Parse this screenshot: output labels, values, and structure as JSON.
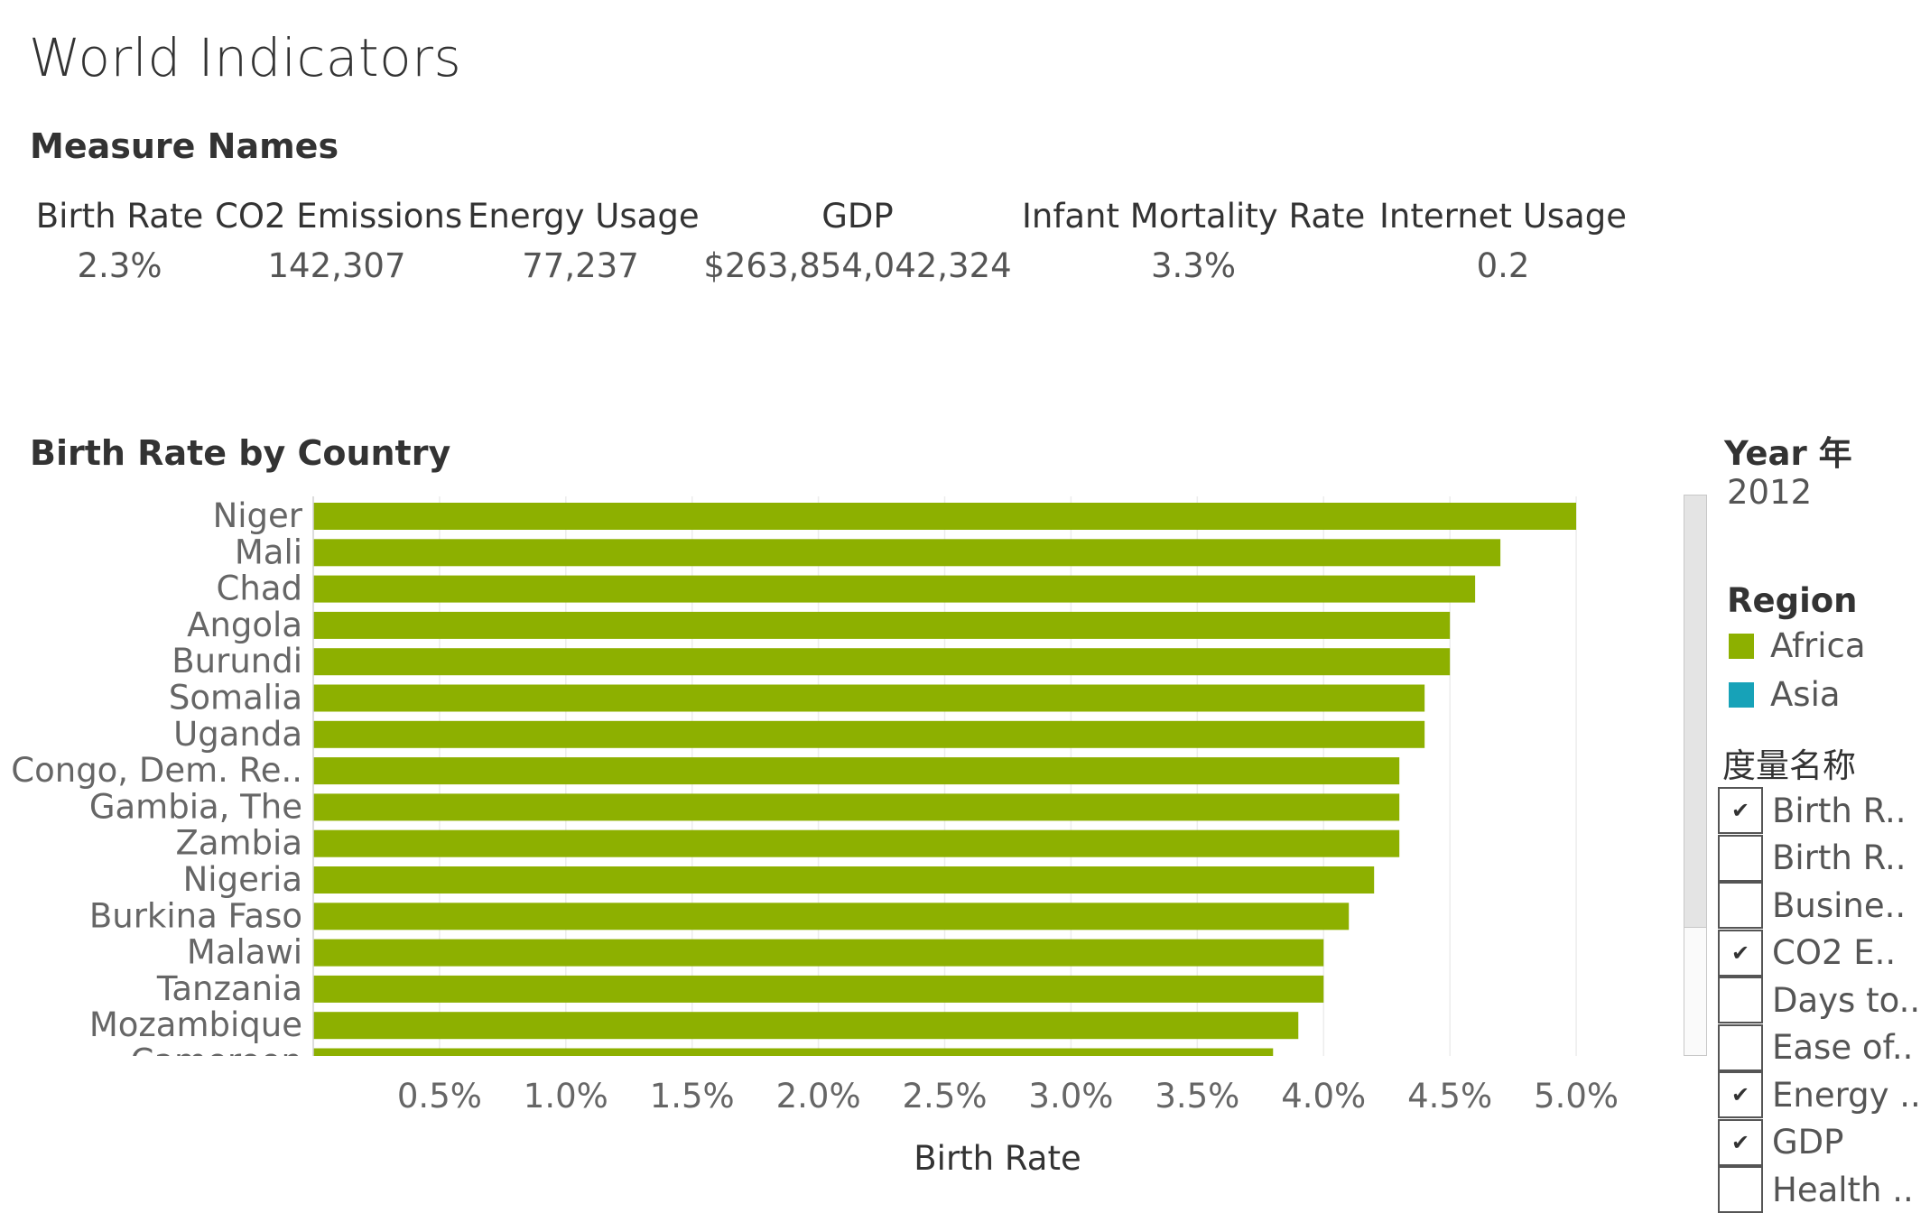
{
  "page": {
    "title": "World Indicators"
  },
  "measures": {
    "title": "Measure Names",
    "items": [
      {
        "name": "Birth Rate",
        "value": "2.3%"
      },
      {
        "name": "CO2 Emissions",
        "value": "142,307"
      },
      {
        "name": "Energy Usage",
        "value": "77,237"
      },
      {
        "name": "GDP",
        "value": "$263,854,042,324"
      },
      {
        "name": "Infant Mortality Rate",
        "value": "3.3%"
      },
      {
        "name": "Internet Usage",
        "value": "0.2"
      }
    ]
  },
  "chart_data": {
    "type": "bar",
    "orientation": "horizontal",
    "title": "Birth Rate by Country",
    "xlabel": "Birth Rate",
    "ylabel": "",
    "xlim": [
      0,
      0.052
    ],
    "x_ticks": [
      "0.5%",
      "1.0%",
      "1.5%",
      "2.0%",
      "2.5%",
      "3.0%",
      "3.5%",
      "4.0%",
      "4.5%",
      "5.0%"
    ],
    "x_tick_values": [
      0.005,
      0.01,
      0.015,
      0.02,
      0.025,
      0.03,
      0.035,
      0.04,
      0.045,
      0.05
    ],
    "grid": "vertical",
    "color": "#8db000",
    "categories": [
      "Niger",
      "Mali",
      "Chad",
      "Angola",
      "Burundi",
      "Somalia",
      "Uganda",
      "Congo, Dem. Re..",
      "Gambia, The",
      "Zambia",
      "Nigeria",
      "Burkina Faso",
      "Malawi",
      "Tanzania",
      "Mozambique",
      "Cameroon"
    ],
    "values": [
      0.05,
      0.047,
      0.046,
      0.045,
      0.045,
      0.044,
      0.044,
      0.043,
      0.043,
      0.043,
      0.042,
      0.041,
      0.04,
      0.04,
      0.039,
      0.038
    ]
  },
  "sidebar": {
    "year_title": "Year 年",
    "year_value": "2012",
    "region_title": "Region",
    "regions": [
      {
        "label": "Africa",
        "color": "#8db000"
      },
      {
        "label": "Asia",
        "color": "#17a2b8"
      }
    ],
    "measure_filter_title": "度量名称",
    "measure_filters": [
      {
        "label": "Birth R..",
        "checked": true
      },
      {
        "label": "Birth R..",
        "checked": false
      },
      {
        "label": "Busine..",
        "checked": false
      },
      {
        "label": "CO2 E..",
        "checked": true
      },
      {
        "label": "Days to..",
        "checked": false
      },
      {
        "label": "Ease of..",
        "checked": false
      },
      {
        "label": "Energy ..",
        "checked": true
      },
      {
        "label": "GDP",
        "checked": true
      },
      {
        "label": "Health ..",
        "checked": false
      }
    ]
  }
}
